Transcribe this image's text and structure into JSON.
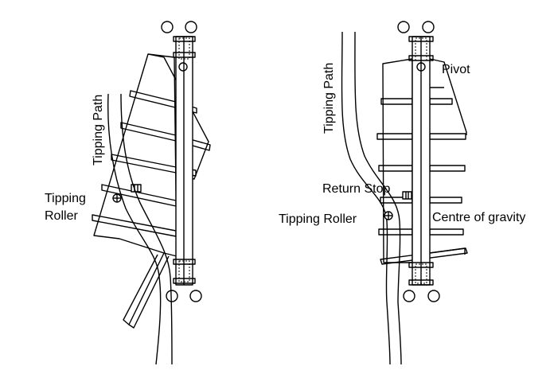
{
  "left_diagram": {
    "tipping_path_label": "Tipping Path",
    "tipping_roller_label_line1": "Tipping",
    "tipping_roller_label_line2": "Roller"
  },
  "right_diagram": {
    "tipping_path_label": "Tipping Path",
    "pivot_label": "Pivot",
    "return_stop_label": "Return Stop",
    "tipping_roller_label": "Tipping Roller",
    "centre_of_gravity_label": "Centre of gravity"
  }
}
